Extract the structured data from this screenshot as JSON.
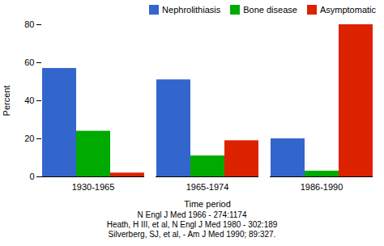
{
  "chart_data": {
    "type": "bar",
    "categories": [
      "1930-1965",
      "1965-1974",
      "1986-1990"
    ],
    "series": [
      {
        "name": "Nephrolithiasis",
        "color": "#3366CC",
        "values": [
          57,
          51,
          20
        ]
      },
      {
        "name": "Bone disease",
        "color": "#00AA00",
        "values": [
          24,
          11,
          3
        ]
      },
      {
        "name": "Asymptomatic",
        "color": "#DD2200",
        "values": [
          2,
          19,
          80
        ]
      }
    ],
    "xlabel": "Time period",
    "ylabel": "Percent",
    "ylim": [
      0,
      80
    ],
    "yticks": [
      0,
      20,
      40,
      60,
      80
    ],
    "grid": false,
    "legend": "upper right",
    "annotations": [
      "N Engl J Med 1966 - 274:1174",
      "Heath, H III, et al, N Engl J Med 1980 - 302:189",
      "Silverberg, SJ, et al, - Am J Med 1990; 89:327."
    ]
  }
}
